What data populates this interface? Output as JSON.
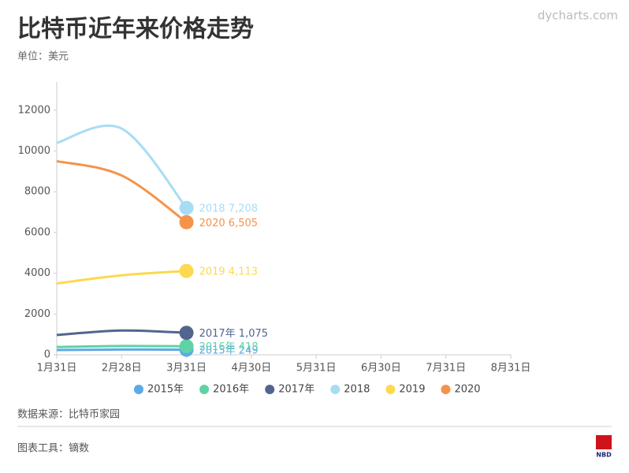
{
  "chart_data": {
    "type": "line",
    "title": "比特币近年来价格走势",
    "subtitle": "单位：美元",
    "source": "数据来源：比特币家园",
    "tool": "图表工具：镝数",
    "watermark": "dycharts.com",
    "logo": "NBD",
    "categories": [
      "1月31日",
      "2月28日",
      "3月31日",
      "4月30日",
      "5月31日",
      "6月30日",
      "7月31日",
      "8月31日"
    ],
    "series": [
      {
        "name": "2015年",
        "color": "#5aaae6",
        "values": [
          230,
          255,
          249,
          null,
          null,
          null,
          null,
          null
        ],
        "value_labels": [
          null,
          null,
          "249",
          null,
          null,
          null,
          null,
          null
        ]
      },
      {
        "name": "2016年",
        "color": "#5fd3a5",
        "values": [
          380,
          430,
          418,
          null,
          null,
          null,
          null,
          null
        ],
        "value_labels": [
          null,
          null,
          "418",
          null,
          null,
          null,
          null,
          null
        ]
      },
      {
        "name": "2017年",
        "color": "#51658f",
        "values": [
          970,
          1190,
          1075,
          null,
          null,
          null,
          null,
          null
        ],
        "value_labels": [
          null,
          null,
          "1,075",
          null,
          null,
          null,
          null,
          null
        ]
      },
      {
        "name": "2018",
        "color": "#a8dcf5",
        "values": [
          10400,
          11100,
          7208,
          null,
          null,
          null,
          null,
          null
        ],
        "value_labels": [
          null,
          null,
          "7,208",
          null,
          null,
          null,
          null,
          null
        ]
      },
      {
        "name": "2019",
        "color": "#fcd94e",
        "values": [
          3500,
          3900,
          4113,
          null,
          null,
          null,
          null,
          null
        ],
        "value_labels": [
          null,
          null,
          "4,113",
          null,
          null,
          null,
          null,
          null
        ]
      },
      {
        "name": "2020",
        "color": "#f5934a",
        "values": [
          9500,
          8800,
          6505,
          null,
          null,
          null,
          null,
          null
        ],
        "value_labels": [
          null,
          null,
          "6,505",
          null,
          null,
          null,
          null,
          null
        ]
      }
    ],
    "ylim": [
      0,
      13000
    ],
    "yticks": [
      0,
      2000,
      4000,
      6000,
      8000,
      10000,
      12000
    ],
    "grid": false
  }
}
